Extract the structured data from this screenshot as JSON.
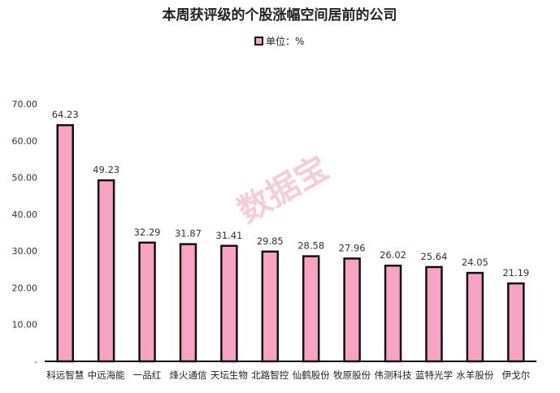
{
  "chart_data": {
    "type": "bar",
    "title": "本周获评级的个股涨幅空间居前的公司",
    "legend": "单位：%",
    "watermark": "数据宝",
    "categories": [
      "科远智慧",
      "中远海能",
      "一品红",
      "烽火通信",
      "天坛生物",
      "北路智控",
      "仙鹤股份",
      "牧原股份",
      "伟测科技",
      "蓝特光学",
      "水羊股份",
      "伊戈尔"
    ],
    "values": [
      64.23,
      49.23,
      32.29,
      31.87,
      31.41,
      29.85,
      28.58,
      27.96,
      26.02,
      25.64,
      24.05,
      21.19
    ],
    "value_labels": [
      "64.23",
      "49.23",
      "32.29",
      "31.87",
      "31.41",
      "29.85",
      "28.58",
      "27.96",
      "26.02",
      "25.64",
      "24.05",
      "21.19"
    ],
    "ylim": [
      0,
      70
    ],
    "yticks": [
      "-",
      "10.00",
      "20.00",
      "30.00",
      "40.00",
      "50.00",
      "60.00",
      "70.00"
    ],
    "colors": {
      "bar_fill": "#f7a3c4",
      "bar_stroke": "#111111",
      "axis": "#111111"
    }
  }
}
